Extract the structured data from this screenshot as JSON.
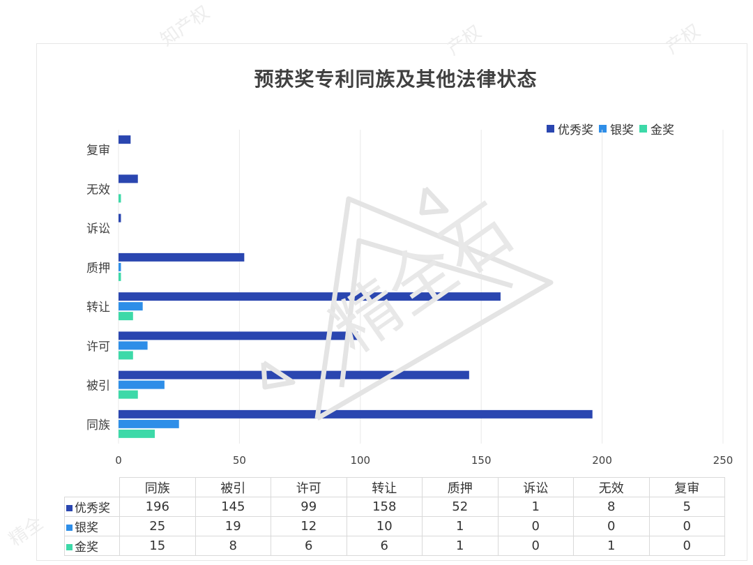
{
  "chart_data": {
    "type": "bar",
    "orientation": "horizontal",
    "title": "预获奖专利同族及其他法律状态",
    "categories": [
      "同族",
      "被引",
      "许可",
      "转让",
      "质押",
      "诉讼",
      "无效",
      "复审"
    ],
    "series": [
      {
        "name": "优秀奖",
        "color": "#2a46b0",
        "values": [
          196,
          145,
          99,
          158,
          52,
          1,
          8,
          5
        ]
      },
      {
        "name": "银奖",
        "color": "#2e8ee8",
        "values": [
          25,
          19,
          12,
          10,
          1,
          0,
          0,
          0
        ]
      },
      {
        "name": "金奖",
        "color": "#3dd9a8",
        "values": [
          15,
          8,
          6,
          6,
          1,
          0,
          1,
          0
        ]
      }
    ],
    "xlim": [
      0,
      250
    ],
    "xticks": [
      "0",
      "50",
      "100",
      "150",
      "200",
      "250"
    ],
    "grid": true,
    "legend_position": "top-right",
    "data_table": true
  },
  "watermark_text": [
    "精全石",
    "知产权",
    "产权",
    "产权",
    "精全"
  ]
}
